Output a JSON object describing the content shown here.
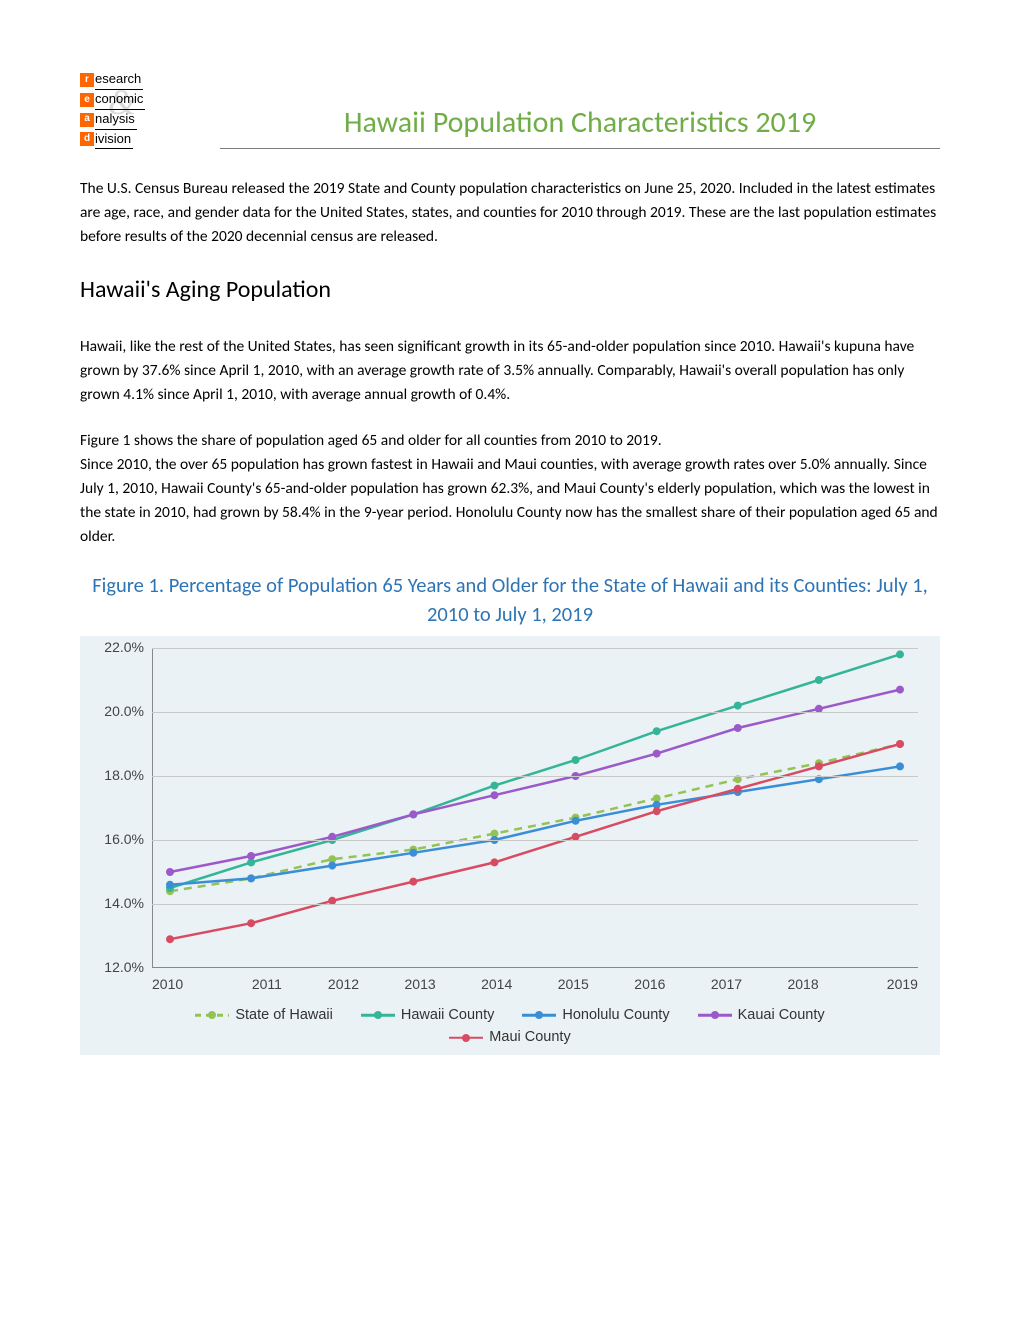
{
  "logo": {
    "r": "r",
    "research": "esearch",
    "e": "e",
    "economic": "conomic",
    "a": "a",
    "analysis": "nalysis",
    "d": "d",
    "division": "ivision"
  },
  "title": "Hawaii Population Characteristics 2019",
  "intro": "The U.S. Census Bureau released the 2019 State and County population characteristics on June 25, 2020. Included in the latest estimates are age, race, and gender data for the United States, states, and counties for 2010 through 2019.  These are the last population estimates before results of the 2020 decennial census are released.",
  "section_head": "Hawaii's Aging Population",
  "para1": "Hawaii, like the rest of the United States, has seen significant growth in its 65-and-older population since 2010. Hawaii's kupuna have grown by 37.6% since April 1, 2010, with an average growth rate of 3.5% annually. Comparably, Hawaii's overall population has only grown 4.1% since April 1, 2010, with average annual growth of 0.4%.",
  "para2": "Figure 1 shows the share of population aged 65 and older for all counties from 2010 to 2019.\nSince 2010, the over 65 population has grown fastest in Hawaii and Maui counties, with average growth rates over 5.0% annually.  Since July 1, 2010, Hawaii County's 65-and-older population has grown 62.3%, and Maui County's elderly population, which was the lowest in the state in 2010, had grown by 58.4% in the 9-year period. Honolulu County now has the smallest share of their population aged 65 and older.",
  "figure_title": "Figure 1. Percentage of Population 65 Years and Older for the State of Hawaii and its Counties: July 1, 2010 to July 1, 2019",
  "chart": {
    "type": "line",
    "background_color": "#eaf2f5",
    "grid_color": "#c9c9c9",
    "axis_color": "#888888",
    "ylim": [
      12.0,
      22.0
    ],
    "ytick_step": 2.0,
    "y_ticks": [
      "12.0%",
      "14.0%",
      "16.0%",
      "18.0%",
      "20.0%",
      "22.0%"
    ],
    "x_labels": [
      "2010",
      "2011",
      "2012",
      "2013",
      "2014",
      "2015",
      "2016",
      "2017",
      "2018",
      "2019"
    ],
    "label_fontsize": 14,
    "marker_radius": 4,
    "line_width": 2.5,
    "series": [
      {
        "name": "State of Hawaii",
        "color": "#92c353",
        "dashed": true,
        "values": [
          14.4,
          14.8,
          15.4,
          15.7,
          16.2,
          16.7,
          17.3,
          17.9,
          18.4,
          19.0
        ]
      },
      {
        "name": "Hawaii County",
        "color": "#35b597",
        "dashed": false,
        "values": [
          14.5,
          15.3,
          16.0,
          16.8,
          17.7,
          18.5,
          19.4,
          20.2,
          21.0,
          21.8
        ]
      },
      {
        "name": "Honolulu County",
        "color": "#3a8ed8",
        "dashed": false,
        "values": [
          14.6,
          14.8,
          15.2,
          15.6,
          16.0,
          16.6,
          17.1,
          17.5,
          17.9,
          18.3
        ]
      },
      {
        "name": "Kauai County",
        "color": "#9b59c9",
        "dashed": false,
        "values": [
          15.0,
          15.5,
          16.1,
          16.8,
          17.4,
          18.0,
          18.7,
          19.5,
          20.1,
          20.7
        ]
      },
      {
        "name": "Maui County",
        "color": "#d94a63",
        "dashed": false,
        "values": [
          12.9,
          13.4,
          14.1,
          14.7,
          15.3,
          16.1,
          16.9,
          17.6,
          18.3,
          19.0
        ]
      }
    ]
  }
}
